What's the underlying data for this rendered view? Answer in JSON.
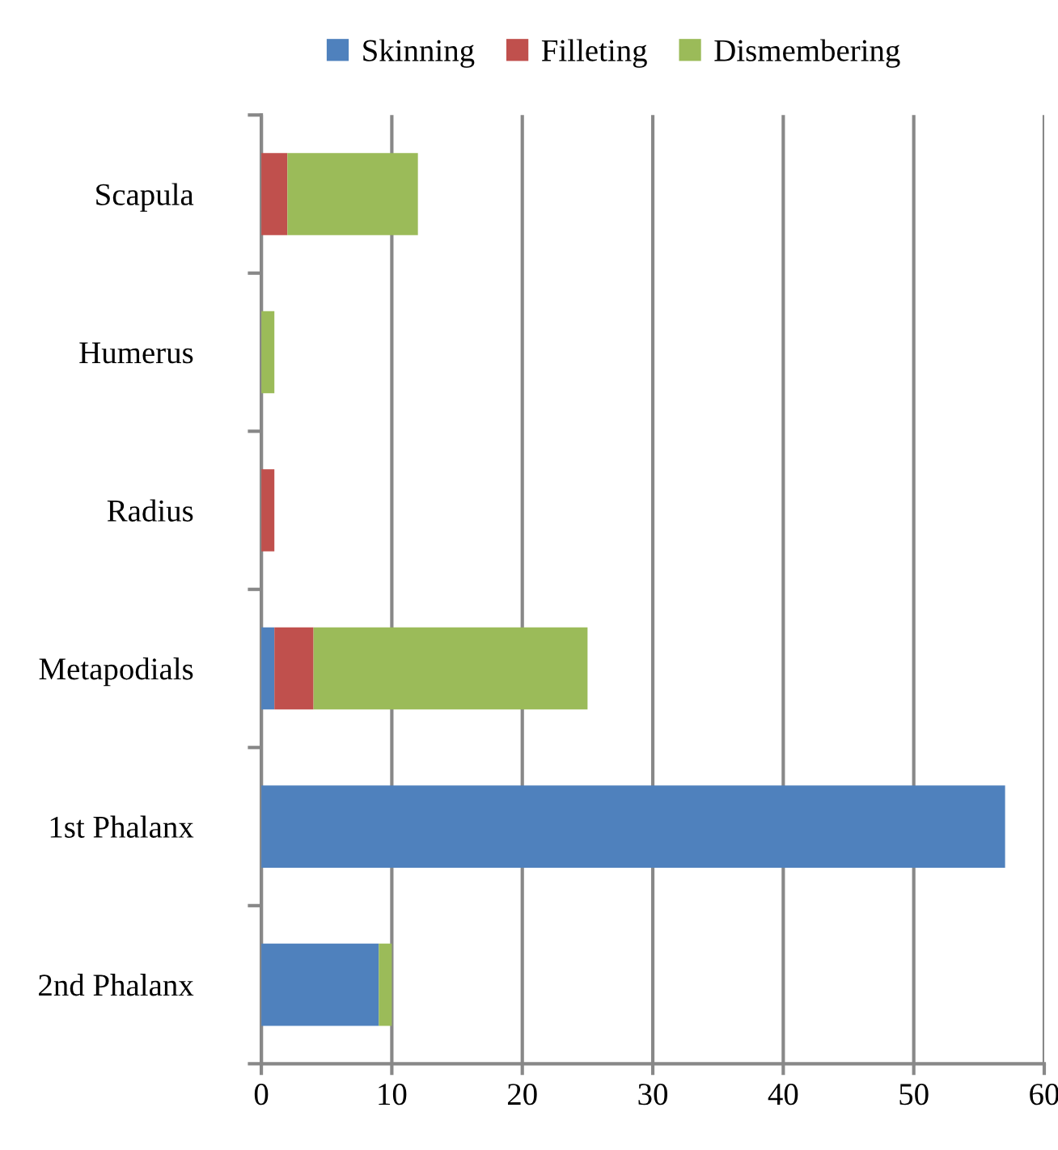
{
  "chart_data": {
    "type": "bar",
    "orientation": "horizontal",
    "stacked": true,
    "categories": [
      "Scapula",
      "Humerus",
      "Radius",
      "Metapodials",
      "1st Phalanx",
      "2nd Phalanx"
    ],
    "series": [
      {
        "name": "Skinning",
        "color": "#4f81bd",
        "values": [
          null,
          null,
          null,
          1,
          57,
          9
        ]
      },
      {
        "name": "Filleting",
        "color": "#c0504d",
        "values": [
          2,
          null,
          1,
          3,
          null,
          null
        ]
      },
      {
        "name": "Dismembering",
        "color": "#9bbb59",
        "values": [
          10,
          1,
          null,
          21,
          null,
          1
        ]
      }
    ],
    "xlim": [
      0,
      60
    ],
    "xticks": [
      0,
      10,
      20,
      30,
      40,
      50,
      60
    ],
    "grid": "x",
    "legend": "top"
  }
}
